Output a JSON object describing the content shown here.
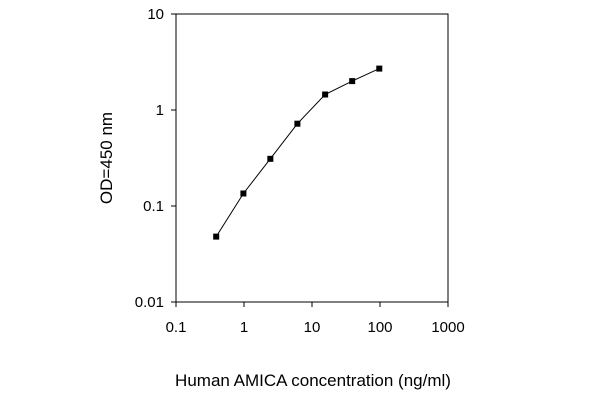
{
  "chart_data": {
    "type": "line",
    "xlabel": "Human AMICA concentration (ng/ml)",
    "ylabel": "OD=450 nm",
    "x_scale": "log",
    "y_scale": "log",
    "xlim": [
      0.1,
      1000
    ],
    "ylim": [
      0.01,
      10
    ],
    "x_ticks": [
      "0.1",
      "1",
      "10",
      "100",
      "1000"
    ],
    "y_ticks": [
      "0.01",
      "0.1",
      "1",
      "10"
    ],
    "grid": false,
    "series": [
      {
        "color": "#000000",
        "marker": "square",
        "points": [
          {
            "x": 0.39,
            "y": 0.048
          },
          {
            "x": 0.98,
            "y": 0.135
          },
          {
            "x": 2.44,
            "y": 0.31
          },
          {
            "x": 6.1,
            "y": 0.72
          },
          {
            "x": 15.6,
            "y": 1.45
          },
          {
            "x": 39.0,
            "y": 2.0
          },
          {
            "x": 97.6,
            "y": 2.7
          }
        ]
      }
    ]
  }
}
